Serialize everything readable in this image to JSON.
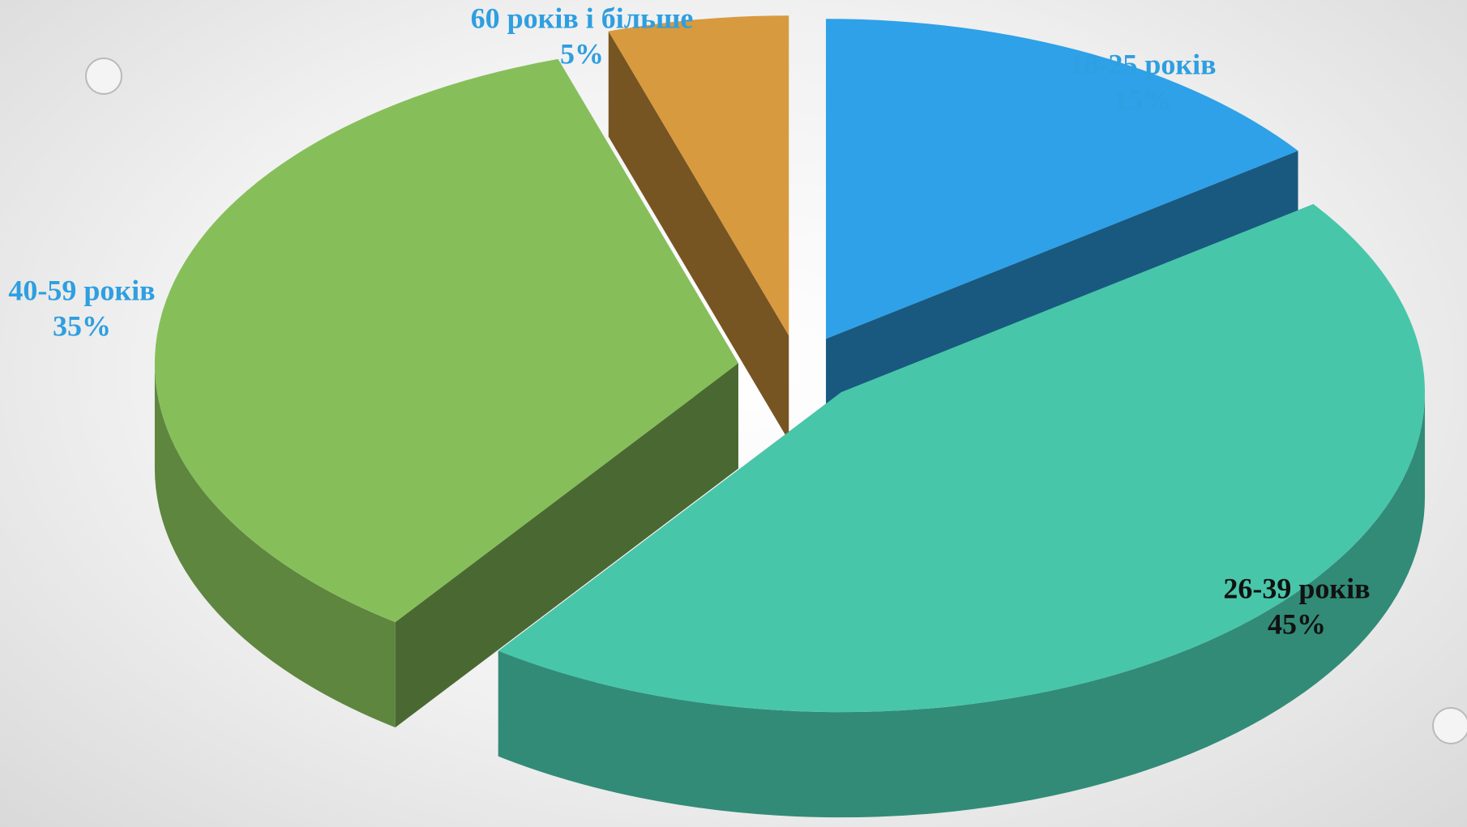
{
  "chart_data": {
    "type": "pie3d",
    "categories": [
      "18-25 років",
      "26-39 років",
      "40-59 років",
      "60 років і більше"
    ],
    "values": [
      15,
      45,
      35,
      5
    ],
    "value_labels": [
      "15%",
      "45%",
      "35%",
      "5%"
    ],
    "colors": [
      "#2ea1e8",
      "#48c6aa",
      "#86bf5a",
      "#d89a3e"
    ]
  }
}
